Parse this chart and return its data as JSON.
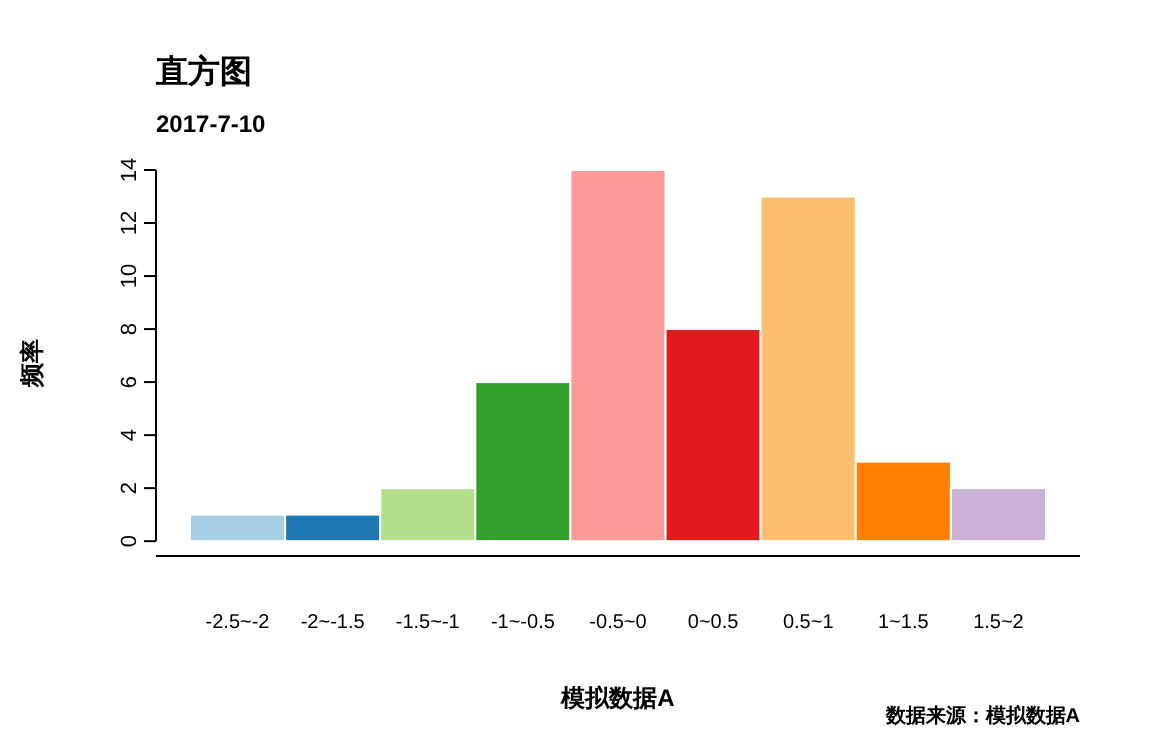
{
  "chart_data": {
    "type": "bar",
    "title": "直方图",
    "subtitle": "2017-7-10",
    "xlabel": "模拟数据A",
    "ylabel": "频率",
    "categories": [
      "-2.5~-2",
      "-2~-1.5",
      "-1.5~-1",
      "-1~-0.5",
      "-0.5~0",
      "0~0.5",
      "0.5~1",
      "1~1.5",
      "1.5~2"
    ],
    "values": [
      1,
      1,
      2,
      6,
      14,
      8,
      13,
      3,
      2
    ],
    "colors": [
      "#a6cee3",
      "#1f78b4",
      "#b2df8a",
      "#33a02c",
      "#fb9a99",
      "#e31a1c",
      "#fdbf6f",
      "#ff7f00",
      "#cab2d6"
    ],
    "ylim": [
      -0.56,
      14
    ],
    "yticks": [
      0,
      2,
      4,
      6,
      8,
      10,
      12,
      14
    ],
    "annotations": [
      "数据来源：模拟数据A"
    ],
    "grid": false
  }
}
